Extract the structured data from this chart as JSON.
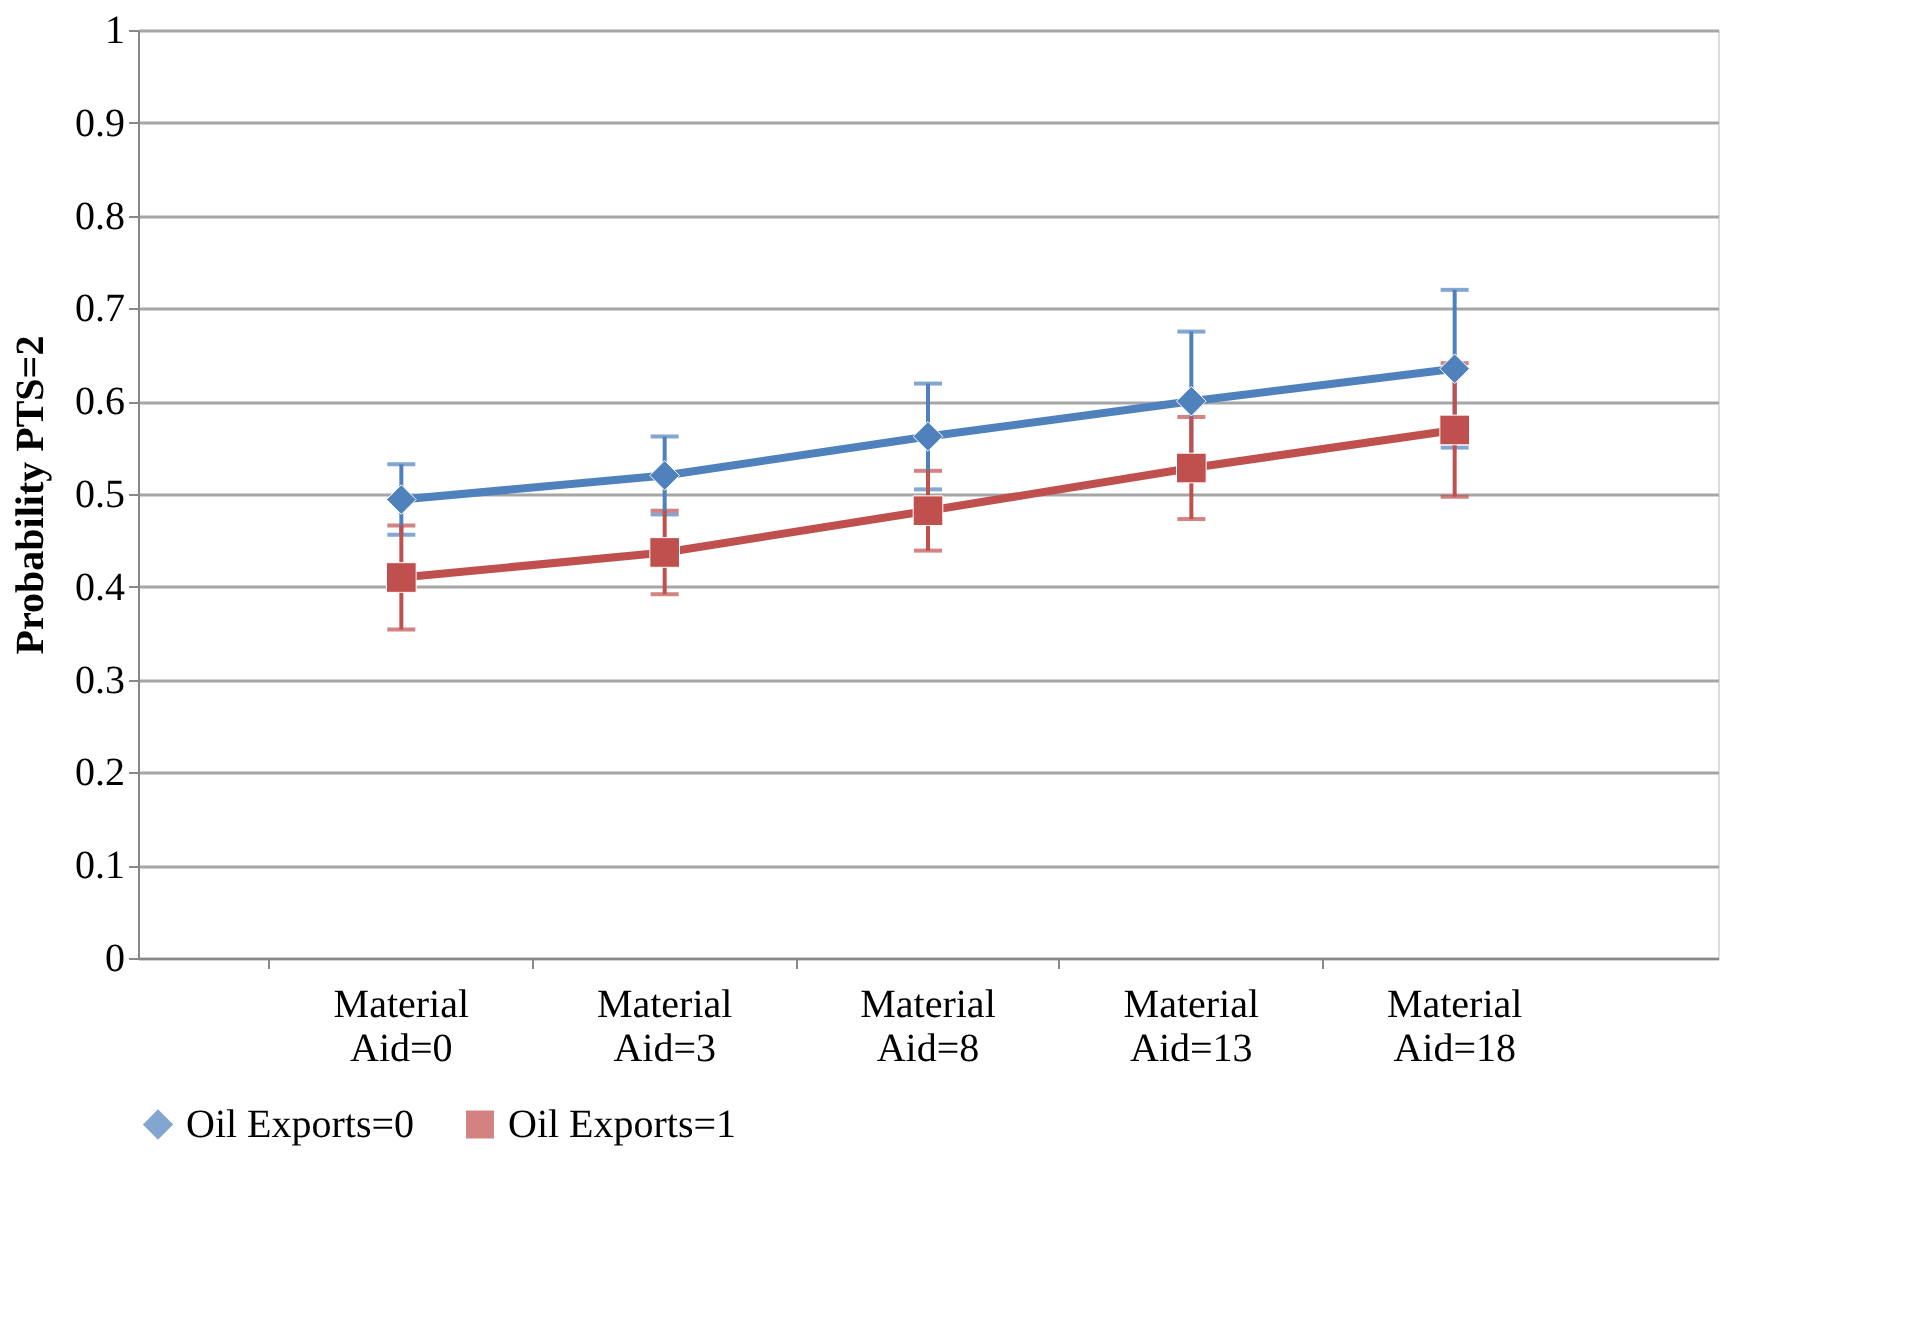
{
  "chart_data": {
    "type": "line",
    "ylabel": "Probability PTS=2",
    "categories": [
      "Material Aid=0",
      "Material Aid=3",
      "Material Aid=8",
      "Material Aid=13",
      "Material Aid=18"
    ],
    "series": [
      {
        "name": "Oil Exports=0",
        "color": "#4f81bd",
        "marker": "diamond",
        "values": [
          0.494,
          0.52,
          0.562,
          0.6,
          0.635
        ],
        "errors": [
          0.038,
          0.042,
          0.057,
          0.075,
          0.085
        ]
      },
      {
        "name": "Oil Exports=1",
        "color": "#c0504d",
        "marker": "square",
        "values": [
          0.41,
          0.437,
          0.482,
          0.528,
          0.569
        ],
        "errors": [
          0.056,
          0.045,
          0.043,
          0.055,
          0.072
        ]
      }
    ],
    "ylim": [
      0,
      1
    ],
    "yticks": [
      {
        "value": 0,
        "label": "0"
      },
      0.1,
      0.2,
      0.3,
      0.4,
      0.5,
      0.6,
      0.7,
      0.8,
      0.9,
      {
        "value": 1,
        "label": "1"
      }
    ],
    "grid": "y",
    "legend": "bottom",
    "line_style": "solid"
  }
}
